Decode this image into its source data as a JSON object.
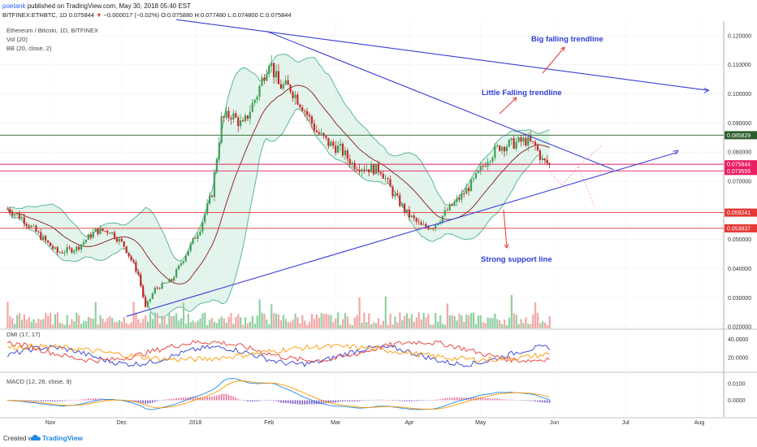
{
  "header": {
    "user": "poetank",
    "published": "published on TradingView.com, May 30, 2018 05:40 EST",
    "symbol_line": "BITFINEX:ETHBTC, 1D",
    "last": "0.075844",
    "change": "−0.000017 (−0.02%)",
    "ohlc": "O:0.075880 H:0.077480 L:0.074800 C:0.075844"
  },
  "footer": {
    "created_with": "Created with",
    "brand": "TradingView"
  },
  "colors": {
    "trendline": "#3a3fd6",
    "annotation": "#2e3dd6",
    "support_red": "#e53935",
    "price_tag_pink": "#e91e63",
    "resistance_green": "#2e5e2e",
    "bb_fill": "#d8f0e6",
    "bb_band": "#4db38a",
    "bb_basis": "#8b1a1a",
    "candle_up": "#3f9e56",
    "candle_down": "#c62828",
    "dmi_plus": "#2e3bd6",
    "dmi_minus": "#e53935",
    "dmi_adx": "#ff9800",
    "macd_line": "#1e88e5",
    "macd_signal": "#ff9800"
  },
  "chart_data": {
    "type": "candlestick",
    "title": "Ethereum / Bitcoin, 1D, BITFINEX",
    "indicators": [
      "Vol (20)",
      "BB (20, close, 2)",
      "DMI (17, 17)",
      "MACD (12, 26, close, 9)"
    ],
    "x_tick_labels": [
      "Nov",
      "Dec",
      "2018",
      "Feb",
      "Mar",
      "Apr",
      "May",
      "Jun",
      "Jul",
      "Aug"
    ],
    "y_tick_labels": [
      "0.120000",
      "0.110000",
      "0.100000",
      "0.090000",
      "0.080000",
      "0.070000",
      "0.060000",
      "0.050000",
      "0.040000",
      "0.030000",
      "0.020000"
    ],
    "ylim": [
      0.0195,
      0.125
    ],
    "price_labels": [
      {
        "value": "0.085829",
        "price": 0.085829,
        "color": "#2e5e2e"
      },
      {
        "value": "0.075844",
        "price": 0.075844,
        "color": "#e91e63"
      },
      {
        "value": "0.073555",
        "price": 0.073555,
        "color": "#e91e63"
      },
      {
        "value": "0.059241",
        "price": 0.059241,
        "color": "#e53935"
      },
      {
        "value": "0.053837",
        "price": 0.053837,
        "color": "#e53935"
      }
    ],
    "close_path": [
      {
        "date": "2017-10-14",
        "price": 0.0605
      },
      {
        "date": "2017-10-20",
        "price": 0.0575
      },
      {
        "date": "2017-10-28",
        "price": 0.051
      },
      {
        "date": "2017-11-04",
        "price": 0.0455
      },
      {
        "date": "2017-11-12",
        "price": 0.047
      },
      {
        "date": "2017-11-20",
        "price": 0.053
      },
      {
        "date": "2017-11-26",
        "price": 0.053
      },
      {
        "date": "2017-12-02",
        "price": 0.048
      },
      {
        "date": "2017-12-08",
        "price": 0.038
      },
      {
        "date": "2017-12-11",
        "price": 0.0265
      },
      {
        "date": "2017-12-15",
        "price": 0.033
      },
      {
        "date": "2017-12-22",
        "price": 0.036
      },
      {
        "date": "2017-12-28",
        "price": 0.045
      },
      {
        "date": "2018-01-03",
        "price": 0.054
      },
      {
        "date": "2018-01-08",
        "price": 0.066
      },
      {
        "date": "2018-01-12",
        "price": 0.091
      },
      {
        "date": "2018-01-16",
        "price": 0.093
      },
      {
        "date": "2018-01-21",
        "price": 0.089
      },
      {
        "date": "2018-01-27",
        "price": 0.1
      },
      {
        "date": "2018-02-01",
        "price": 0.112
      },
      {
        "date": "2018-02-05",
        "price": 0.103
      },
      {
        "date": "2018-02-10",
        "price": 0.102
      },
      {
        "date": "2018-02-15",
        "price": 0.096
      },
      {
        "date": "2018-02-21",
        "price": 0.087
      },
      {
        "date": "2018-02-26",
        "price": 0.083
      },
      {
        "date": "2018-03-03",
        "price": 0.081
      },
      {
        "date": "2018-03-08",
        "price": 0.076
      },
      {
        "date": "2018-03-14",
        "price": 0.0745
      },
      {
        "date": "2018-03-20",
        "price": 0.074
      },
      {
        "date": "2018-03-25",
        "price": 0.066
      },
      {
        "date": "2018-03-31",
        "price": 0.059
      },
      {
        "date": "2018-04-06",
        "price": 0.0545
      },
      {
        "date": "2018-04-11",
        "price": 0.0545
      },
      {
        "date": "2018-04-17",
        "price": 0.06
      },
      {
        "date": "2018-04-23",
        "price": 0.065
      },
      {
        "date": "2018-04-28",
        "price": 0.07
      },
      {
        "date": "2018-05-04",
        "price": 0.078
      },
      {
        "date": "2018-05-09",
        "price": 0.082
      },
      {
        "date": "2018-05-15",
        "price": 0.083
      },
      {
        "date": "2018-05-20",
        "price": 0.084
      },
      {
        "date": "2018-05-24",
        "price": 0.082
      },
      {
        "date": "2018-05-27",
        "price": 0.077
      },
      {
        "date": "2018-05-30",
        "price": 0.0758
      }
    ],
    "trendlines": [
      {
        "label": "Big falling trendline",
        "from": {
          "date": "2017-12-24",
          "price": 0.1255
        },
        "to": {
          "date": "2018-08-05",
          "price": 0.1012
        }
      },
      {
        "label": "Little Falling trendline",
        "from": {
          "date": "2018-01-31",
          "price": 0.1215
        },
        "to": {
          "date": "2018-06-26",
          "price": 0.074
        }
      },
      {
        "label": "Strong support line",
        "from": {
          "date": "2017-12-03",
          "price": 0.0236
        },
        "to": {
          "date": "2018-07-23",
          "price": 0.08
        }
      }
    ],
    "horizontal_lines": [
      {
        "price": 0.085829,
        "color": "#2e5e2e"
      },
      {
        "price": 0.075844,
        "color": "#e91e63"
      },
      {
        "price": 0.073555,
        "color": "#e91e63"
      },
      {
        "price": 0.059241,
        "color": "#e53935"
      },
      {
        "price": 0.053837,
        "color": "#e53935"
      }
    ],
    "annotations": [
      {
        "text": "Big falling trendline"
      },
      {
        "text": "Little Falling trendline"
      },
      {
        "text": "Strong support line"
      }
    ],
    "dmi_panel": {
      "label": "DMI (17, 17)",
      "y_tick_labels": [
        "40.0000",
        "20.0000"
      ]
    },
    "macd_panel": {
      "label": "MACD (12, 26, close, 9)",
      "y_tick_labels": [
        "0.0100",
        "0.0000"
      ]
    }
  }
}
